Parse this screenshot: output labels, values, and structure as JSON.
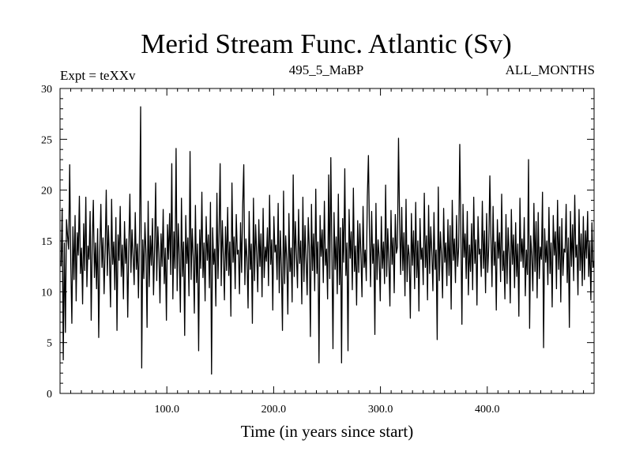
{
  "chart_data": {
    "type": "line",
    "title": "Merid Stream Func. Atlantic (Sv)",
    "subtitle_left": "Expt = teXXv",
    "subtitle_center": "495_5_MaBP",
    "subtitle_right": "ALL_MONTHS",
    "xlabel": "Time (in years since start)",
    "ylabel": "",
    "xlim": [
      0,
      500
    ],
    "ylim": [
      0,
      30
    ],
    "x_ticks": [
      100,
      200,
      300,
      400
    ],
    "x_tick_labels": [
      "100.0",
      "200.0",
      "300.0",
      "400.0"
    ],
    "y_ticks": [
      0,
      5,
      10,
      15,
      20,
      25,
      30
    ],
    "y_tick_labels": [
      "0",
      "5",
      "10",
      "15",
      "20",
      "25",
      "30"
    ],
    "grid": false,
    "series": [
      {
        "name": "Merid Stream Func. Atlantic",
        "x_start": 1,
        "x_step": 1,
        "values": [
          12.5,
          18.2,
          3.3,
          14.8,
          6,
          17.1,
          15.5,
          14.2,
          22.5,
          13,
          6.9,
          16.4,
          11.2,
          17.5,
          9.1,
          15.8,
          13.6,
          19.4,
          11.8,
          14.3,
          8.8,
          16.7,
          12.1,
          19.3,
          10.5,
          14.5,
          13.2,
          17.9,
          7.2,
          15.1,
          19,
          11.4,
          14.8,
          10.3,
          16.2,
          5.5,
          13.9,
          18.6,
          12.4,
          15.3,
          9.8,
          14.1,
          20,
          11.6,
          16.5,
          13.3,
          8.5,
          19.1,
          12.7,
          14.9,
          10.2,
          17.3,
          6.2,
          15.6,
          13.1,
          18.4,
          11.5,
          14.6,
          9.3,
          16.9,
          12.8,
          15.2,
          7.5,
          14.4,
          19.6,
          11.9,
          16.1,
          13.5,
          10.7,
          17.8,
          12.2,
          14.7,
          9.4,
          15.9,
          28.2,
          2.5,
          15.1,
          11.3,
          16.8,
          13.7,
          6.5,
          18.9,
          10.5,
          15.5,
          12.6,
          17.2,
          9.7,
          14.2,
          20.7,
          11.1,
          16.4,
          13.8,
          8.9,
          15.7,
          12.5,
          18.1,
          10.8,
          14.3,
          7.2,
          16.6,
          13.2,
          17.7,
          11.7,
          22.6,
          9.3,
          15.9,
          12.3,
          24.1,
          10.1,
          16.7,
          13.6,
          8,
          19.2,
          11.5,
          14.9,
          5.7,
          17.5,
          12.8,
          15.3,
          9.6,
          23.8,
          11.2,
          16.2,
          13.4,
          7.9,
          18.5,
          10.9,
          14.7,
          4.2,
          16.1,
          12.3,
          19.8,
          11.4,
          14.8,
          9.1,
          17.4,
          13.1,
          15.6,
          10.4,
          18.8,
          1.9,
          16.3,
          12.7,
          14.2,
          8.6,
          19.7,
          11.3,
          15.8,
          22.6,
          10.6,
          17,
          13.5,
          9.2,
          16.4,
          12.1,
          18.3,
          11.6,
          14.9,
          7.6,
          20.7,
          12.9,
          15.4,
          10.3,
          17.6,
          13.7,
          14.1,
          9.8,
          16.8,
          11.9,
          18.5,
          22.5,
          10.7,
          15.2,
          13.3,
          8.4,
          17.9,
          12.2,
          14.7,
          6.9,
          19.2,
          11.1,
          16.6,
          13.8,
          10,
          17.1,
          12.5,
          15.7,
          9.5,
          18.2,
          11.4,
          14.4,
          13,
          16.3,
          10.6,
          19.5,
          12.7,
          15.1,
          8.2,
          17.4,
          13.9,
          14.6,
          11.2,
          18.7,
          9.9,
          16,
          12.4,
          6.2,
          19.9,
          10.8,
          15.5,
          13.2,
          7.8,
          17.7,
          12,
          14.3,
          9,
          21.5,
          11.5,
          16.9,
          13.6,
          10.4,
          18.1,
          12.8,
          15,
          8.8,
          19.3,
          11,
          16.5,
          13.1,
          9.7,
          17.3,
          14.4,
          5.6,
          18.6,
          12.1,
          15.7,
          10.1,
          20.1,
          11.8,
          14.9,
          3,
          17.5,
          13.5,
          16.1,
          10.9,
          18.9,
          12.6,
          14.2,
          9.3,
          21.5,
          11.3,
          23.2,
          13.9,
          4.4,
          17.8,
          12.2,
          15.4,
          9.8,
          19.6,
          10.7,
          16.3,
          3,
          17.2,
          12.9,
          22.1,
          11.6,
          14.8,
          4.2,
          18.1,
          13.3,
          15.9,
          10.2,
          20.2,
          12,
          14.5,
          8.7,
          17,
          11.9,
          16.7,
          13.7,
          9.5,
          18.4,
          12.4,
          14.1,
          11.1,
          19.4,
          23.4,
          15.6,
          10.5,
          17.9,
          12.8,
          14.7,
          5.8,
          18.7,
          11.2,
          15.1,
          13.4,
          9.1,
          17.4,
          12.3,
          14.9,
          10.8,
          20.5,
          11.5,
          16.2,
          13,
          8.6,
          18,
          12.7,
          15.3,
          9.9,
          17.6,
          13.8,
          14.4,
          25.1,
          16.9,
          11.7,
          18.3,
          12.1,
          15.8,
          9.6,
          19.1,
          11,
          14.6,
          13.5,
          7.4,
          17.7,
          12.6,
          16,
          10.3,
          18.8,
          11.4,
          15,
          8.1,
          17.2,
          13.2,
          14.3,
          10.7,
          19.7,
          12.4,
          15.5,
          9.2,
          18.5,
          11.8,
          16.4,
          13.9,
          10.1,
          17.8,
          12.2,
          14.1,
          5.3,
          20.3,
          11.1,
          15.9,
          13.6,
          9.4,
          18.2,
          12.9,
          14.8,
          10.6,
          17.1,
          11.6,
          16.5,
          8.3,
          19,
          13.1,
          15.2,
          10.9,
          17.5,
          12.5,
          14.4,
          24.5,
          16.1,
          6.8,
          18.6,
          13.4,
          15.7,
          11.3,
          17.9,
          9.7,
          14.6,
          12,
          16.7,
          10.2,
          19.3,
          12.8,
          15.1,
          8.7,
          17.4,
          13.7,
          14.2,
          11.5,
          18.9,
          12.3,
          16,
          9.9,
          17.7,
          11.9,
          14.5,
          21.4,
          15.4,
          10.5,
          18.4,
          12.6,
          14.9,
          8.2,
          17.1,
          13.3,
          15.8,
          11,
          19.6,
          12.1,
          14,
          9.3,
          17.6,
          10.8,
          16.3,
          13.8,
          8.9,
          18.1,
          12.7,
          15.6,
          10.4,
          16.8,
          11.5,
          14.7,
          7.6,
          19.2,
          13,
          15.2,
          12.4,
          17.3,
          9.6,
          14.1,
          11.7,
          23,
          6.4,
          15.5,
          13.5,
          10.1,
          18.7,
          12,
          16.9,
          9.4,
          17.8,
          11.3,
          14.4,
          13.2,
          19.8,
          4.5,
          16.2,
          12.9,
          15,
          10.7,
          18.3,
          11.8,
          14.8,
          8.5,
          17.5,
          13.6,
          15.9,
          10.3,
          19,
          12.2,
          16.4,
          9,
          17.2,
          11.6,
          14.2,
          13.9,
          18.6,
          10.9,
          15.3,
          6.5,
          17.9,
          12.5,
          16.6,
          11.1,
          19.5,
          13.4,
          14.6,
          9.7,
          18.1,
          12.1,
          15.7,
          10.6,
          17.4,
          11.2,
          16,
          13.3,
          17.9,
          11.5,
          14.9,
          9.2,
          16.8,
          12.4,
          13
        ]
      }
    ]
  }
}
